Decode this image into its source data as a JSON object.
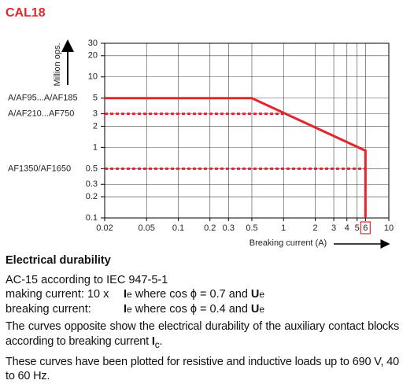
{
  "title": "CAL18",
  "chart_data": {
    "type": "line",
    "y_label": "Million ops.",
    "x_label": "Breaking current (A)",
    "xlim": [
      0.02,
      10
    ],
    "ylim": [
      0.1,
      30
    ],
    "log_x": true,
    "log_y": true,
    "grid": true,
    "xticks": [
      0.02,
      0.05,
      0.1,
      0.2,
      0.3,
      0.5,
      1,
      2,
      3,
      4,
      5,
      6,
      10
    ],
    "yticks": [
      0.1,
      0.2,
      0.3,
      0.5,
      1,
      2,
      3,
      5,
      10,
      20,
      30
    ],
    "highlighted_xtick": 6,
    "series": [
      {
        "name": "A/AF95...A/AF185",
        "color": "#e3262d",
        "style": "solid",
        "x": [
          0.02,
          0.5,
          6,
          6
        ],
        "values": [
          5,
          5,
          0.9,
          0.1
        ]
      },
      {
        "name": "A/AF210...AF750",
        "color": "#e3262d",
        "style": "dashed",
        "x": [
          0.02,
          1
        ],
        "values": [
          3,
          3
        ]
      },
      {
        "name": "AF1350/AF1650",
        "color": "#e3262d",
        "style": "dashed",
        "x": [
          0.02,
          6
        ],
        "values": [
          0.5,
          0.5
        ]
      }
    ]
  },
  "text": {
    "heading": "Electrical durability",
    "standard": "AC-15 according to IEC 947-5-1",
    "making": {
      "label": "making current: 10 x",
      "symbol": "I",
      "sub": "e",
      "condition": "where cos ϕ = 0.7 and",
      "symbol2": "U",
      "sub2": "e"
    },
    "breaking": {
      "label": "breaking current:",
      "symbol": "I",
      "sub": "e",
      "condition": "where cos ϕ = 0.4 and",
      "symbol2": "U",
      "sub2": "e"
    },
    "curves_note": {
      "text": "The curves opposite show the electrical durability of the auxiliary contact blocks according to breaking current",
      "symbol": "I",
      "sub": "c",
      "end": "."
    },
    "loads_note": "These curves have been plotted for resistive and inductive loads up to 690 V, 40 to 60 Hz."
  }
}
